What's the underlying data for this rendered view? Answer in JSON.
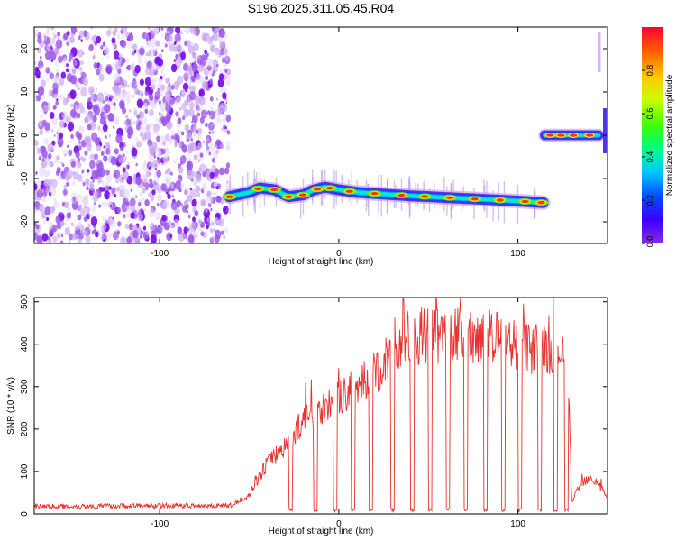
{
  "page_title": "S196.2025.311.05.45.R04",
  "colors": {
    "snr_line": "#e8302e",
    "noise_purple": "#9b55e8",
    "colorbar_stops": [
      "#8a2be2",
      "#3a00ff",
      "#0050ff",
      "#00c8ff",
      "#00ff80",
      "#40ff00",
      "#c8ff00",
      "#ffc800",
      "#ff6400",
      "#ff0033"
    ]
  },
  "chart_data": [
    {
      "type": "heatmap",
      "title": "S196.2025.311.05.45.R04",
      "xlabel": "Height of straight line (km)",
      "ylabel": "Frequency (Hz)",
      "xlim": [
        -170,
        150
      ],
      "ylim": [
        -25,
        25
      ],
      "x_ticks": [
        {
          "value": -100,
          "label": "-100"
        },
        {
          "value": 0,
          "label": "0"
        },
        {
          "value": 100,
          "label": "100"
        }
      ],
      "y_ticks": [
        {
          "value": 20,
          "label": "20"
        },
        {
          "value": 10,
          "label": "10"
        },
        {
          "value": 0,
          "label": "0"
        },
        {
          "value": -10,
          "label": "-10"
        },
        {
          "value": -20,
          "label": "-20"
        }
      ],
      "noise_region_x": [
        -170,
        -61
      ],
      "main_track": {
        "x_range": [
          -61,
          115
        ],
        "points": [
          {
            "x": -61,
            "y": -14.2
          },
          {
            "x": -50,
            "y": -13.2
          },
          {
            "x": -44,
            "y": -12.2
          },
          {
            "x": -36,
            "y": -12.6
          },
          {
            "x": -28,
            "y": -14.2
          },
          {
            "x": -20,
            "y": -13.8
          },
          {
            "x": -15,
            "y": -12.8
          },
          {
            "x": -8,
            "y": -12.0
          },
          {
            "x": 0,
            "y": -12.6
          },
          {
            "x": 10,
            "y": -13.2
          },
          {
            "x": 25,
            "y": -13.6
          },
          {
            "x": 40,
            "y": -14.0
          },
          {
            "x": 60,
            "y": -14.4
          },
          {
            "x": 80,
            "y": -14.8
          },
          {
            "x": 100,
            "y": -15.2
          },
          {
            "x": 115,
            "y": -15.6
          }
        ],
        "peak_x": [
          -61,
          -45,
          -36,
          -28,
          -20,
          -12,
          -5,
          6,
          20,
          35,
          48,
          62,
          76,
          90,
          104,
          113
        ]
      },
      "side_track": {
        "x_range": [
          115,
          145
        ],
        "y": 0,
        "peak_x": [
          118,
          124,
          131,
          140
        ]
      },
      "colorbar": {
        "label": "Normalized spectral amplitude",
        "range": [
          0,
          1
        ],
        "ticks": [
          {
            "value": 0,
            "label": "0.0"
          },
          {
            "value": 0.2,
            "label": "0.2"
          },
          {
            "value": 0.4,
            "label": "0.4"
          },
          {
            "value": 0.6,
            "label": "0.6"
          },
          {
            "value": 0.8,
            "label": "0.8"
          }
        ]
      }
    },
    {
      "type": "line",
      "xlabel": "Height of straight line (km)",
      "ylabel": "SNR (10 * v/v)",
      "xlim": [
        -170,
        150
      ],
      "ylim": [
        0,
        510
      ],
      "x_ticks": [
        {
          "value": -100,
          "label": "-100"
        },
        {
          "value": 0,
          "label": "0"
        },
        {
          "value": 100,
          "label": "100"
        }
      ],
      "y_ticks": [
        {
          "value": 0,
          "label": "0"
        },
        {
          "value": 100,
          "label": "100"
        },
        {
          "value": 200,
          "label": "200"
        },
        {
          "value": 300,
          "label": "300"
        },
        {
          "value": 400,
          "label": "400"
        },
        {
          "value": 500,
          "label": "500"
        }
      ],
      "series": [
        {
          "name": "SNR",
          "envelope": [
            {
              "x": -170,
              "y": 18
            },
            {
              "x": -60,
              "y": 20
            },
            {
              "x": -50,
              "y": 45
            },
            {
              "x": -40,
              "y": 120
            },
            {
              "x": -30,
              "y": 160
            },
            {
              "x": -20,
              "y": 220
            },
            {
              "x": -10,
              "y": 250
            },
            {
              "x": 0,
              "y": 270
            },
            {
              "x": 10,
              "y": 300
            },
            {
              "x": 20,
              "y": 330
            },
            {
              "x": 30,
              "y": 380
            },
            {
              "x": 40,
              "y": 420
            },
            {
              "x": 60,
              "y": 420
            },
            {
              "x": 80,
              "y": 420
            },
            {
              "x": 100,
              "y": 400
            },
            {
              "x": 115,
              "y": 380
            },
            {
              "x": 128,
              "y": 360
            },
            {
              "x": 130,
              "y": 30
            },
            {
              "x": 135,
              "y": 70
            },
            {
              "x": 140,
              "y": 90
            },
            {
              "x": 145,
              "y": 70
            },
            {
              "x": 150,
              "y": 40
            }
          ],
          "dropouts_x": [
            -27,
            -13,
            -2,
            8,
            18,
            30,
            41,
            51,
            61,
            71,
            82,
            92,
            101,
            112,
            121,
            127
          ]
        }
      ]
    }
  ]
}
